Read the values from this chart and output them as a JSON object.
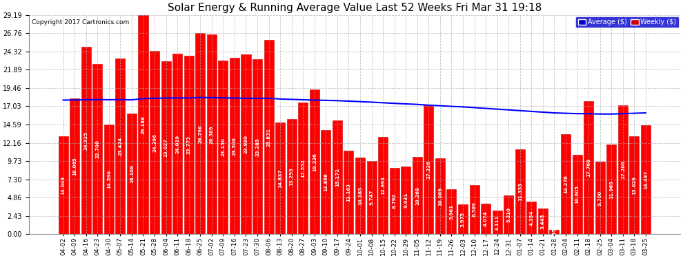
{
  "title": "Solar Energy & Running Average Value Last 52 Weeks Fri Mar 31 19:18",
  "copyright": "Copyright 2017 Cartronics.com",
  "ylim": [
    0,
    29.19
  ],
  "yticks": [
    0.0,
    2.43,
    4.86,
    7.3,
    9.73,
    12.16,
    14.59,
    17.03,
    19.46,
    21.89,
    24.32,
    26.76,
    29.19
  ],
  "bar_color": "#ff0000",
  "avg_line_color": "#0000ff",
  "background_color": "#ffffff",
  "grid_color": "#aaaaaa",
  "categories": [
    "04-02",
    "04-09",
    "04-16",
    "04-23",
    "04-30",
    "05-07",
    "05-14",
    "05-21",
    "05-28",
    "06-04",
    "06-11",
    "06-18",
    "06-25",
    "07-02",
    "07-09",
    "07-16",
    "07-23",
    "07-30",
    "08-06",
    "08-13",
    "08-20",
    "08-27",
    "09-03",
    "09-10",
    "09-17",
    "09-24",
    "10-01",
    "10-08",
    "10-15",
    "10-22",
    "10-29",
    "11-05",
    "11-12",
    "11-19",
    "11-26",
    "12-03",
    "12-10",
    "12-17",
    "12-24",
    "12-31",
    "01-07",
    "01-14",
    "01-21",
    "01-28",
    "02-04",
    "02-11",
    "02-18",
    "02-25",
    "03-04",
    "03-11",
    "03-18",
    "03-25"
  ],
  "weekly_values": [
    13.049,
    18.065,
    24.925,
    22.7,
    14.59,
    23.424,
    16.108,
    29.188,
    24.396,
    23.027,
    24.019,
    23.773,
    26.796,
    26.569,
    23.15,
    23.5,
    23.98,
    23.285,
    25.831,
    14.837,
    15.295,
    17.552,
    19.236,
    13.866,
    15.171,
    11.163,
    10.185,
    9.747,
    12.993,
    8.792,
    9.031,
    10.268,
    17.226,
    10.069,
    5.961,
    3.975,
    6.569,
    4.074,
    3.111,
    5.21,
    11.335,
    4.354,
    3.445,
    0.554,
    13.276,
    10.605,
    17.76,
    9.7,
    11.965,
    17.206,
    13.029,
    14.497
  ],
  "avg_values": [
    17.85,
    17.87,
    17.9,
    17.92,
    17.9,
    17.92,
    17.88,
    18.05,
    18.1,
    18.12,
    18.15,
    18.13,
    18.2,
    18.18,
    18.15,
    18.12,
    18.1,
    18.08,
    18.1,
    18.0,
    17.95,
    17.9,
    17.85,
    17.82,
    17.78,
    17.72,
    17.65,
    17.58,
    17.5,
    17.42,
    17.35,
    17.28,
    17.18,
    17.1,
    17.02,
    16.95,
    16.85,
    16.75,
    16.65,
    16.55,
    16.45,
    16.35,
    16.25,
    16.15,
    16.1,
    16.05,
    16.05,
    16.0,
    16.0,
    16.05,
    16.1,
    16.15
  ],
  "legend_avg_color": "#0000cc",
  "legend_weekly_color": "#cc0000",
  "title_fontsize": 11,
  "tick_fontsize": 7,
  "bar_label_fontsize": 5,
  "copyright_fontsize": 6.5
}
